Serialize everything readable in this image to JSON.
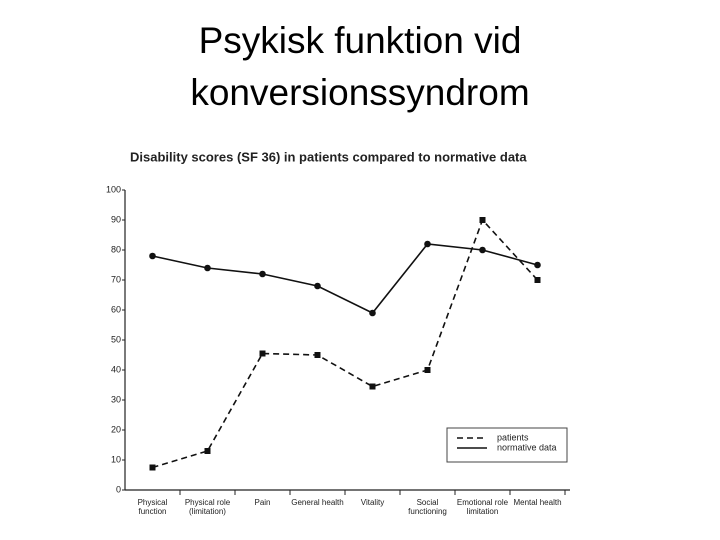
{
  "slide_title": [
    "Psykisk funktion vid",
    "konversionssyndrom"
  ],
  "chart_data": {
    "type": "line",
    "title": "Disability scores (SF 36) in patients compared to normative data",
    "categories": [
      "Physical function",
      "Physical role (limitation)",
      "Pain",
      "General health",
      "Vitality",
      "Social functioning",
      "Emotional role limitation",
      "Mental health"
    ],
    "series": [
      {
        "name": "patients",
        "color": "#111111",
        "dashed": true,
        "marker": "square",
        "values": [
          7.5,
          13,
          45.5,
          45,
          34.5,
          40,
          90,
          70
        ]
      },
      {
        "name": "normative data",
        "color": "#111111",
        "dashed": false,
        "marker": "circle",
        "values": [
          78,
          74,
          72,
          68,
          59,
          82,
          80,
          75
        ]
      }
    ],
    "ylim": [
      0,
      100
    ],
    "yticks": [
      0,
      10,
      20,
      30,
      40,
      50,
      60,
      70,
      80,
      90,
      100
    ],
    "grid": false,
    "legend": "lower right"
  }
}
